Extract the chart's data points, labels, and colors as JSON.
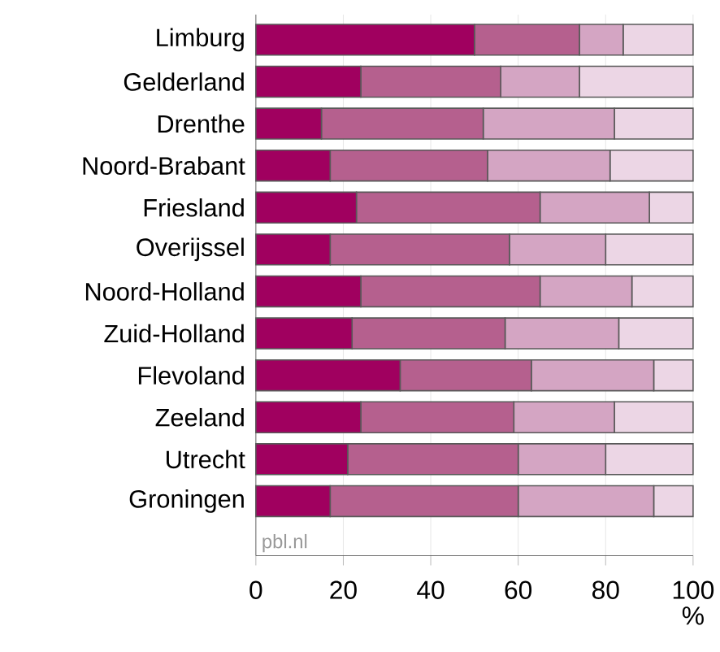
{
  "chart_data": {
    "type": "bar",
    "orientation": "horizontal",
    "stacked": true,
    "categories": [
      "Limburg",
      "Gelderland",
      "Drenthe",
      "Noord-Brabant",
      "Friesland",
      "Overijssel",
      "Noord-Holland",
      "Zuid-Holland",
      "Flevoland",
      "Zeeland",
      "Utrecht",
      "Groningen"
    ],
    "series": [
      {
        "color": "#a0005f",
        "values": [
          50,
          24,
          15,
          17,
          23,
          17,
          24,
          22,
          33,
          24,
          21,
          17
        ]
      },
      {
        "color": "#b5608e",
        "values": [
          24,
          32,
          37,
          36,
          42,
          41,
          41,
          35,
          30,
          35,
          39,
          43
        ]
      },
      {
        "color": "#d4a5c3",
        "values": [
          10,
          18,
          30,
          28,
          25,
          22,
          21,
          26,
          28,
          23,
          20,
          31
        ]
      },
      {
        "color": "#ecd6e5",
        "values": [
          16,
          26,
          18,
          19,
          10,
          20,
          14,
          17,
          9,
          18,
          20,
          9
        ]
      }
    ],
    "xlim": [
      0,
      100
    ],
    "xticks": [
      0,
      20,
      40,
      60,
      80,
      100
    ],
    "xlabel": "%",
    "grid": "x",
    "annotations": [
      "pbl.nl"
    ]
  }
}
